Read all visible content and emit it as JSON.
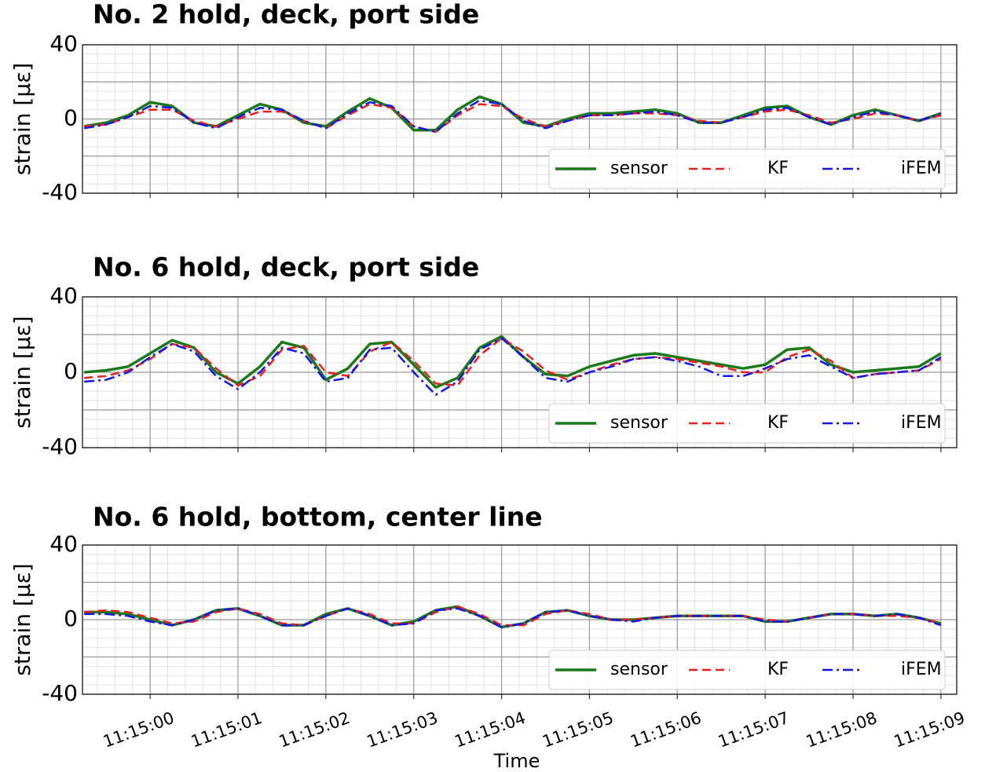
{
  "chart_data": [
    {
      "type": "line",
      "title": "No. 2 hold, deck, port side",
      "ylabel": "strain [με]",
      "x": [
        -0.75,
        -0.5,
        -0.25,
        0,
        0.25,
        0.5,
        0.75,
        1,
        1.25,
        1.5,
        1.75,
        2,
        2.25,
        2.5,
        2.75,
        3,
        3.25,
        3.5,
        3.75,
        4,
        4.25,
        4.5,
        4.75,
        5,
        5.25,
        5.5,
        5.75,
        6,
        6.25,
        6.5,
        6.75,
        7,
        7.25,
        7.5,
        7.75,
        8,
        8.25,
        8.5,
        8.75,
        9
      ],
      "series": [
        {
          "name": "sensor",
          "color": "#1a7a1a",
          "linestyle": "solid",
          "values": [
            -4,
            -2,
            2,
            9,
            7,
            -2,
            -4,
            2,
            8,
            5,
            -2,
            -4,
            4,
            11,
            6,
            -6,
            -6,
            5,
            12,
            8,
            -2,
            -4,
            0,
            3,
            3,
            4,
            5,
            3,
            -2,
            -2,
            2,
            6,
            7,
            1,
            -3,
            2,
            5,
            2,
            -1,
            3
          ]
        },
        {
          "name": "KF",
          "color": "#ee1c1c",
          "linestyle": "dashed",
          "values": [
            -4,
            -3,
            1,
            5,
            5,
            -1,
            -4,
            0,
            4,
            4,
            -1,
            -5,
            2,
            8,
            6,
            -4,
            -7,
            2,
            8,
            7,
            0,
            -4,
            -1,
            2,
            2,
            3,
            3,
            2,
            -1,
            -2,
            1,
            4,
            5,
            2,
            -2,
            0,
            3,
            2,
            -1,
            2
          ]
        },
        {
          "name": "iFEM",
          "color": "#1414e6",
          "linestyle": "dashdot",
          "values": [
            -5,
            -3,
            1,
            7,
            6,
            -2,
            -5,
            1,
            6,
            5,
            -1,
            -5,
            3,
            9,
            7,
            -4,
            -7,
            3,
            10,
            8,
            -1,
            -5,
            -1,
            2,
            2,
            3,
            4,
            2,
            -2,
            -2,
            1,
            5,
            6,
            1,
            -3,
            1,
            4,
            2,
            -1,
            3
          ]
        }
      ],
      "xlim": [
        -0.77,
        9.18
      ],
      "xticks": [
        0,
        1,
        2,
        3,
        4,
        5,
        6,
        7,
        8,
        9
      ],
      "ylim": [
        -40,
        40
      ],
      "yticks": [
        -40,
        0,
        40
      ],
      "grid": true,
      "legend": "lower right"
    },
    {
      "type": "line",
      "title": "No. 6 hold, deck, port side",
      "ylabel": "strain [με]",
      "x": [
        -0.75,
        -0.5,
        -0.25,
        0,
        0.25,
        0.5,
        0.75,
        1,
        1.25,
        1.5,
        1.75,
        2,
        2.25,
        2.5,
        2.75,
        3,
        3.25,
        3.5,
        3.75,
        4,
        4.25,
        4.5,
        4.75,
        5,
        5.25,
        5.5,
        5.75,
        6,
        6.25,
        6.5,
        6.75,
        7,
        7.25,
        7.5,
        7.75,
        8,
        8.25,
        8.5,
        8.75,
        9
      ],
      "series": [
        {
          "name": "sensor",
          "color": "#1a7a1a",
          "linestyle": "solid",
          "values": [
            0,
            1,
            3,
            10,
            17,
            13,
            0,
            -6,
            3,
            16,
            13,
            -4,
            2,
            15,
            16,
            4,
            -8,
            -3,
            13,
            19,
            8,
            -1,
            -2,
            3,
            6,
            9,
            10,
            8,
            6,
            4,
            2,
            4,
            12,
            13,
            4,
            0,
            1,
            2,
            3,
            10
          ]
        },
        {
          "name": "KF",
          "color": "#ee1c1c",
          "linestyle": "dashed",
          "values": [
            -3,
            -2,
            1,
            7,
            15,
            13,
            2,
            -7,
            -2,
            12,
            14,
            0,
            -2,
            11,
            16,
            6,
            -6,
            -7,
            9,
            18,
            11,
            1,
            -4,
            0,
            4,
            7,
            8,
            7,
            5,
            3,
            0,
            0,
            8,
            12,
            6,
            -3,
            -1,
            0,
            1,
            7
          ]
        },
        {
          "name": "iFEM",
          "color": "#1414e6",
          "linestyle": "dashdot",
          "values": [
            -5,
            -4,
            0,
            8,
            15,
            11,
            -2,
            -9,
            0,
            13,
            10,
            -5,
            -3,
            12,
            13,
            0,
            -12,
            -5,
            12,
            18,
            8,
            -3,
            -5,
            0,
            3,
            7,
            8,
            6,
            3,
            -2,
            -2,
            2,
            7,
            9,
            3,
            -3,
            -1,
            0,
            1,
            8
          ]
        }
      ],
      "xlim": [
        -0.77,
        9.18
      ],
      "xticks": [
        0,
        1,
        2,
        3,
        4,
        5,
        6,
        7,
        8,
        9
      ],
      "ylim": [
        -40,
        40
      ],
      "yticks": [
        -40,
        0,
        40
      ],
      "grid": true,
      "legend": "lower right"
    },
    {
      "type": "line",
      "title": "No. 6 hold, bottom, center line",
      "ylabel": "strain [με]",
      "xlabel": "Time",
      "x": [
        -0.75,
        -0.5,
        -0.25,
        0,
        0.25,
        0.5,
        0.75,
        1,
        1.25,
        1.5,
        1.75,
        2,
        2.25,
        2.5,
        2.75,
        3,
        3.25,
        3.5,
        3.75,
        4,
        4.25,
        4.5,
        4.75,
        5,
        5.25,
        5.5,
        5.75,
        6,
        6.25,
        6.5,
        6.75,
        7,
        7.25,
        7.5,
        7.75,
        8,
        8.25,
        8.5,
        8.75,
        9
      ],
      "series": [
        {
          "name": "sensor",
          "color": "#1a7a1a",
          "linestyle": "solid",
          "values": [
            4,
            4,
            3,
            0,
            -3,
            0,
            5,
            6,
            2,
            -3,
            -3,
            3,
            6,
            2,
            -3,
            -1,
            5,
            7,
            2,
            -4,
            -2,
            4,
            5,
            2,
            0,
            0,
            1,
            2,
            2,
            2,
            2,
            -1,
            -1,
            1,
            3,
            3,
            2,
            3,
            1,
            -2
          ]
        },
        {
          "name": "KF",
          "color": "#ee1c1c",
          "linestyle": "dashed",
          "values": [
            4,
            5,
            4,
            1,
            -2,
            -1,
            4,
            6,
            3,
            -2,
            -3,
            2,
            6,
            3,
            -2,
            -2,
            4,
            7,
            3,
            -3,
            -3,
            3,
            5,
            3,
            0,
            0,
            1,
            2,
            2,
            2,
            2,
            0,
            -1,
            1,
            3,
            3,
            2,
            2,
            1,
            -2
          ]
        },
        {
          "name": "iFEM",
          "color": "#1414e6",
          "linestyle": "dashdot",
          "values": [
            3,
            3,
            2,
            -1,
            -3,
            0,
            5,
            6,
            2,
            -3,
            -3,
            2,
            6,
            2,
            -3,
            -2,
            5,
            6,
            2,
            -4,
            -2,
            4,
            5,
            2,
            0,
            -1,
            1,
            2,
            2,
            2,
            2,
            -1,
            -1,
            1,
            3,
            3,
            2,
            3,
            1,
            -3
          ]
        }
      ],
      "xlim": [
        -0.77,
        9.18
      ],
      "xticks": [
        {
          "value": 0,
          "label": "11:15:00"
        },
        {
          "value": 1,
          "label": "11:15:01"
        },
        {
          "value": 2,
          "label": "11:15:02"
        },
        {
          "value": 3,
          "label": "11:15:03"
        },
        {
          "value": 4,
          "label": "11:15:04"
        },
        {
          "value": 5,
          "label": "11:15:05"
        },
        {
          "value": 6,
          "label": "11:15:06"
        },
        {
          "value": 7,
          "label": "11:15:07"
        },
        {
          "value": 8,
          "label": "11:15:08"
        },
        {
          "value": 9,
          "label": "11:15:09"
        }
      ],
      "ylim": [
        -40,
        40
      ],
      "yticks": [
        -40,
        0,
        40
      ],
      "grid": true,
      "legend": "lower right"
    }
  ]
}
